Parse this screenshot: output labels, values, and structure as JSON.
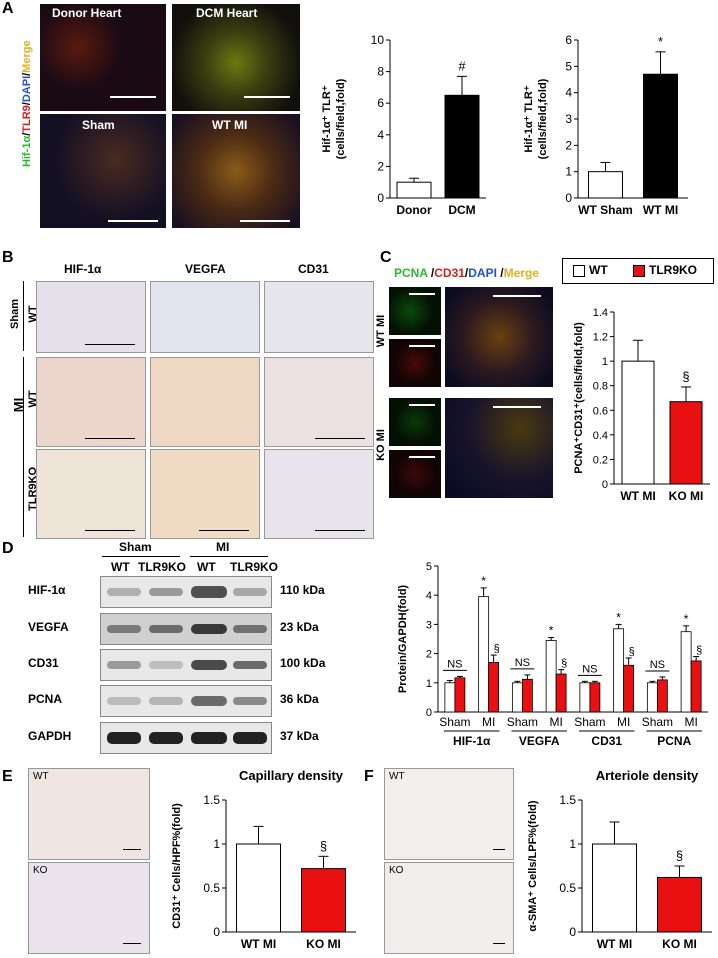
{
  "panels": {
    "a": "A",
    "b": "B",
    "c": "C",
    "d": "D",
    "e": "E",
    "f": "F"
  },
  "panel_a": {
    "images": {
      "donor": "Donor Heart",
      "dcm": "DCM Heart",
      "sham": "Sham",
      "wtmi": "WT MI"
    },
    "stain_parts": [
      {
        "text": "Hif-1α",
        "color": "#2db82d"
      },
      {
        "text": "/",
        "color": "#000000"
      },
      {
        "text": "TLR9",
        "color": "#d42020"
      },
      {
        "text": "/",
        "color": "#000000"
      },
      {
        "text": "DAPI",
        "color": "#2050d0"
      },
      {
        "text": "/",
        "color": "#000000"
      },
      {
        "text": "Merge",
        "color": "#e0b020"
      }
    ]
  },
  "panel_b": {
    "columns": [
      "HIF-1α",
      "VEGFA",
      "CD31"
    ],
    "groups": {
      "sham": "Sham",
      "mi": "MI"
    },
    "rows": [
      "WT",
      "WT",
      "TLR9KO"
    ]
  },
  "panel_c": {
    "stain_parts": [
      {
        "text": "PCNA",
        "color": "#2db82d"
      },
      {
        "text": " /",
        "color": "#000000"
      },
      {
        "text": "CD31",
        "color": "#d42020"
      },
      {
        "text": "/",
        "color": "#000000"
      },
      {
        "text": "DAPI",
        "color": "#2050d0"
      },
      {
        "text": " /",
        "color": "#000000"
      },
      {
        "text": "Merge",
        "color": "#e0b020"
      }
    ],
    "rows": [
      "WT MI",
      "KO MI"
    ],
    "legend": [
      {
        "label": "WT",
        "color": "#ffffff"
      },
      {
        "label": "TLR9KO",
        "color": "#e81010"
      }
    ]
  },
  "panel_d": {
    "groups": [
      "Sham",
      "MI"
    ],
    "lanes": [
      "WT",
      "TLR9KO",
      "WT",
      "TLR9KO"
    ],
    "blots": [
      {
        "name": "HIF-1α",
        "kda": "110 kDa"
      },
      {
        "name": "VEGFA",
        "kda": "23 kDa"
      },
      {
        "name": "CD31",
        "kda": "100 kDa"
      },
      {
        "name": "PCNA",
        "kda": "36 kDa"
      },
      {
        "name": "GAPDH",
        "kda": "37 kDa"
      }
    ]
  },
  "panel_e": {
    "img_top": "WT",
    "img_bottom": "KO"
  },
  "panel_f": {
    "img_top": "WT",
    "img_bottom": "KO"
  },
  "colors": {
    "wt": "#ffffff",
    "ko": "#e81010",
    "donor": "#ffffff",
    "dcm": "#000000"
  },
  "chart_data": [
    {
      "id": "a1",
      "type": "bar",
      "categories": [
        "Donor",
        "DCM"
      ],
      "values": [
        1.0,
        6.5
      ],
      "errors": [
        0.25,
        1.2
      ],
      "fills": [
        "#ffffff",
        "#000000"
      ],
      "ylabel_lines": [
        "Hif-1α⁺ TLR⁺",
        "(cells/field,fold)"
      ],
      "ylim": [
        0,
        10
      ],
      "yticks": [
        0,
        2,
        4,
        6,
        8,
        10
      ],
      "annotations": [
        "",
        "#"
      ]
    },
    {
      "id": "a2",
      "type": "bar",
      "categories": [
        "WT Sham",
        "WT MI"
      ],
      "values": [
        1.0,
        4.7
      ],
      "errors": [
        0.35,
        0.85
      ],
      "fills": [
        "#ffffff",
        "#000000"
      ],
      "ylabel_lines": [
        "Hif-1α⁺ TLR⁺",
        "(cells/field,fold)"
      ],
      "ylim": [
        0,
        6
      ],
      "yticks": [
        0,
        1,
        2,
        3,
        4,
        5,
        6
      ],
      "annotations": [
        "",
        "*"
      ]
    },
    {
      "id": "c",
      "type": "bar",
      "categories": [
        "WT MI",
        "KO MI"
      ],
      "values": [
        1.0,
        0.67
      ],
      "errors": [
        0.17,
        0.12
      ],
      "fills": [
        "#ffffff",
        "#e81010"
      ],
      "ylabel_lines": [
        "PCNA⁺CD31⁺(cells/field,fold)"
      ],
      "ylim": [
        0,
        1.4
      ],
      "yticks": [
        0,
        0.2,
        0.4,
        0.6,
        0.8,
        1,
        1.2,
        1.4
      ],
      "annotations": [
        "",
        "§"
      ]
    },
    {
      "id": "d",
      "type": "bar",
      "groups": [
        "HIF-1α",
        "VEGFA",
        "CD31",
        "PCNA"
      ],
      "subgroups": [
        "Sham",
        "MI"
      ],
      "series": [
        {
          "name": "WT",
          "values": [
            1.0,
            3.95,
            1.0,
            2.45,
            1.0,
            2.85,
            1.0,
            2.75
          ],
          "errors": [
            0.08,
            0.3,
            0.05,
            0.1,
            0.05,
            0.15,
            0.05,
            0.2
          ]
        },
        {
          "name": "TLR9KO",
          "values": [
            1.17,
            1.7,
            1.12,
            1.3,
            1.0,
            1.6,
            1.1,
            1.75
          ],
          "errors": [
            0.05,
            0.25,
            0.15,
            0.15,
            0.05,
            0.25,
            0.1,
            0.15
          ]
        }
      ],
      "ylabel_lines": [
        "Protein/GAPDH(fold)"
      ],
      "ylim": [
        0,
        5
      ],
      "yticks": [
        0,
        1,
        2,
        3,
        4,
        5
      ],
      "ns_label": "NS",
      "star": "*",
      "section": "§"
    },
    {
      "id": "e",
      "type": "bar",
      "title": "Capillary density",
      "categories": [
        "WT MI",
        "KO MI"
      ],
      "values": [
        1.0,
        0.72
      ],
      "errors": [
        0.2,
        0.14
      ],
      "fills": [
        "#ffffff",
        "#e81010"
      ],
      "ylabel_lines": [
        "CD31⁺ Cells/HPF%(fold)"
      ],
      "ylim": [
        0,
        1.5
      ],
      "yticks": [
        0,
        0.5,
        1,
        1.5
      ],
      "annotations": [
        "",
        "§"
      ]
    },
    {
      "id": "f",
      "type": "bar",
      "title": "Arteriole density",
      "categories": [
        "WT MI",
        "KO MI"
      ],
      "values": [
        1.0,
        0.62
      ],
      "errors": [
        0.25,
        0.13
      ],
      "fills": [
        "#ffffff",
        "#e81010"
      ],
      "ylabel_lines": [
        "α-SMA⁺ Cells/LPF%(fold)"
      ],
      "ylim": [
        0,
        1.5
      ],
      "yticks": [
        0,
        0.5,
        1,
        1.5
      ],
      "annotations": [
        "",
        "§"
      ]
    }
  ]
}
